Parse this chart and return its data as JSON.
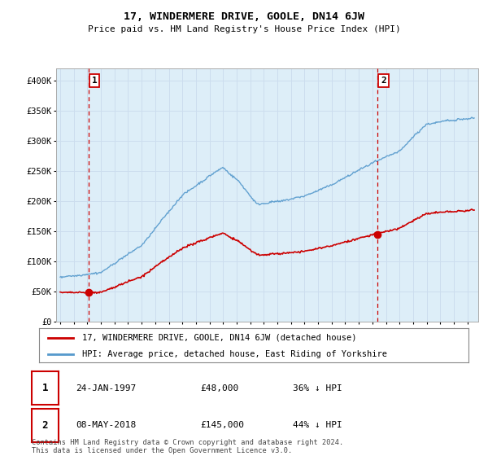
{
  "title": "17, WINDERMERE DRIVE, GOOLE, DN14 6JW",
  "subtitle": "Price paid vs. HM Land Registry's House Price Index (HPI)",
  "ylim": [
    0,
    420000
  ],
  "yticks": [
    0,
    50000,
    100000,
    150000,
    200000,
    250000,
    300000,
    350000,
    400000
  ],
  "ytick_labels": [
    "£0",
    "£50K",
    "£100K",
    "£150K",
    "£200K",
    "£250K",
    "£300K",
    "£350K",
    "£400K"
  ],
  "hpi_color": "#5599cc",
  "price_color": "#cc0000",
  "grid_color": "#ccddee",
  "background_color": "#ddeef8",
  "sale1_date": 1997.07,
  "sale1_price": 48000,
  "sale1_label": "1",
  "sale2_date": 2018.37,
  "sale2_price": 145000,
  "sale2_label": "2",
  "legend_entry1": "17, WINDERMERE DRIVE, GOOLE, DN14 6JW (detached house)",
  "legend_entry2": "HPI: Average price, detached house, East Riding of Yorkshire",
  "table_row1_num": "1",
  "table_row1_date": "24-JAN-1997",
  "table_row1_price": "£48,000",
  "table_row1_hpi": "36% ↓ HPI",
  "table_row2_num": "2",
  "table_row2_date": "08-MAY-2018",
  "table_row2_price": "£145,000",
  "table_row2_hpi": "44% ↓ HPI",
  "footer": "Contains HM Land Registry data © Crown copyright and database right 2024.\nThis data is licensed under the Open Government Licence v3.0."
}
